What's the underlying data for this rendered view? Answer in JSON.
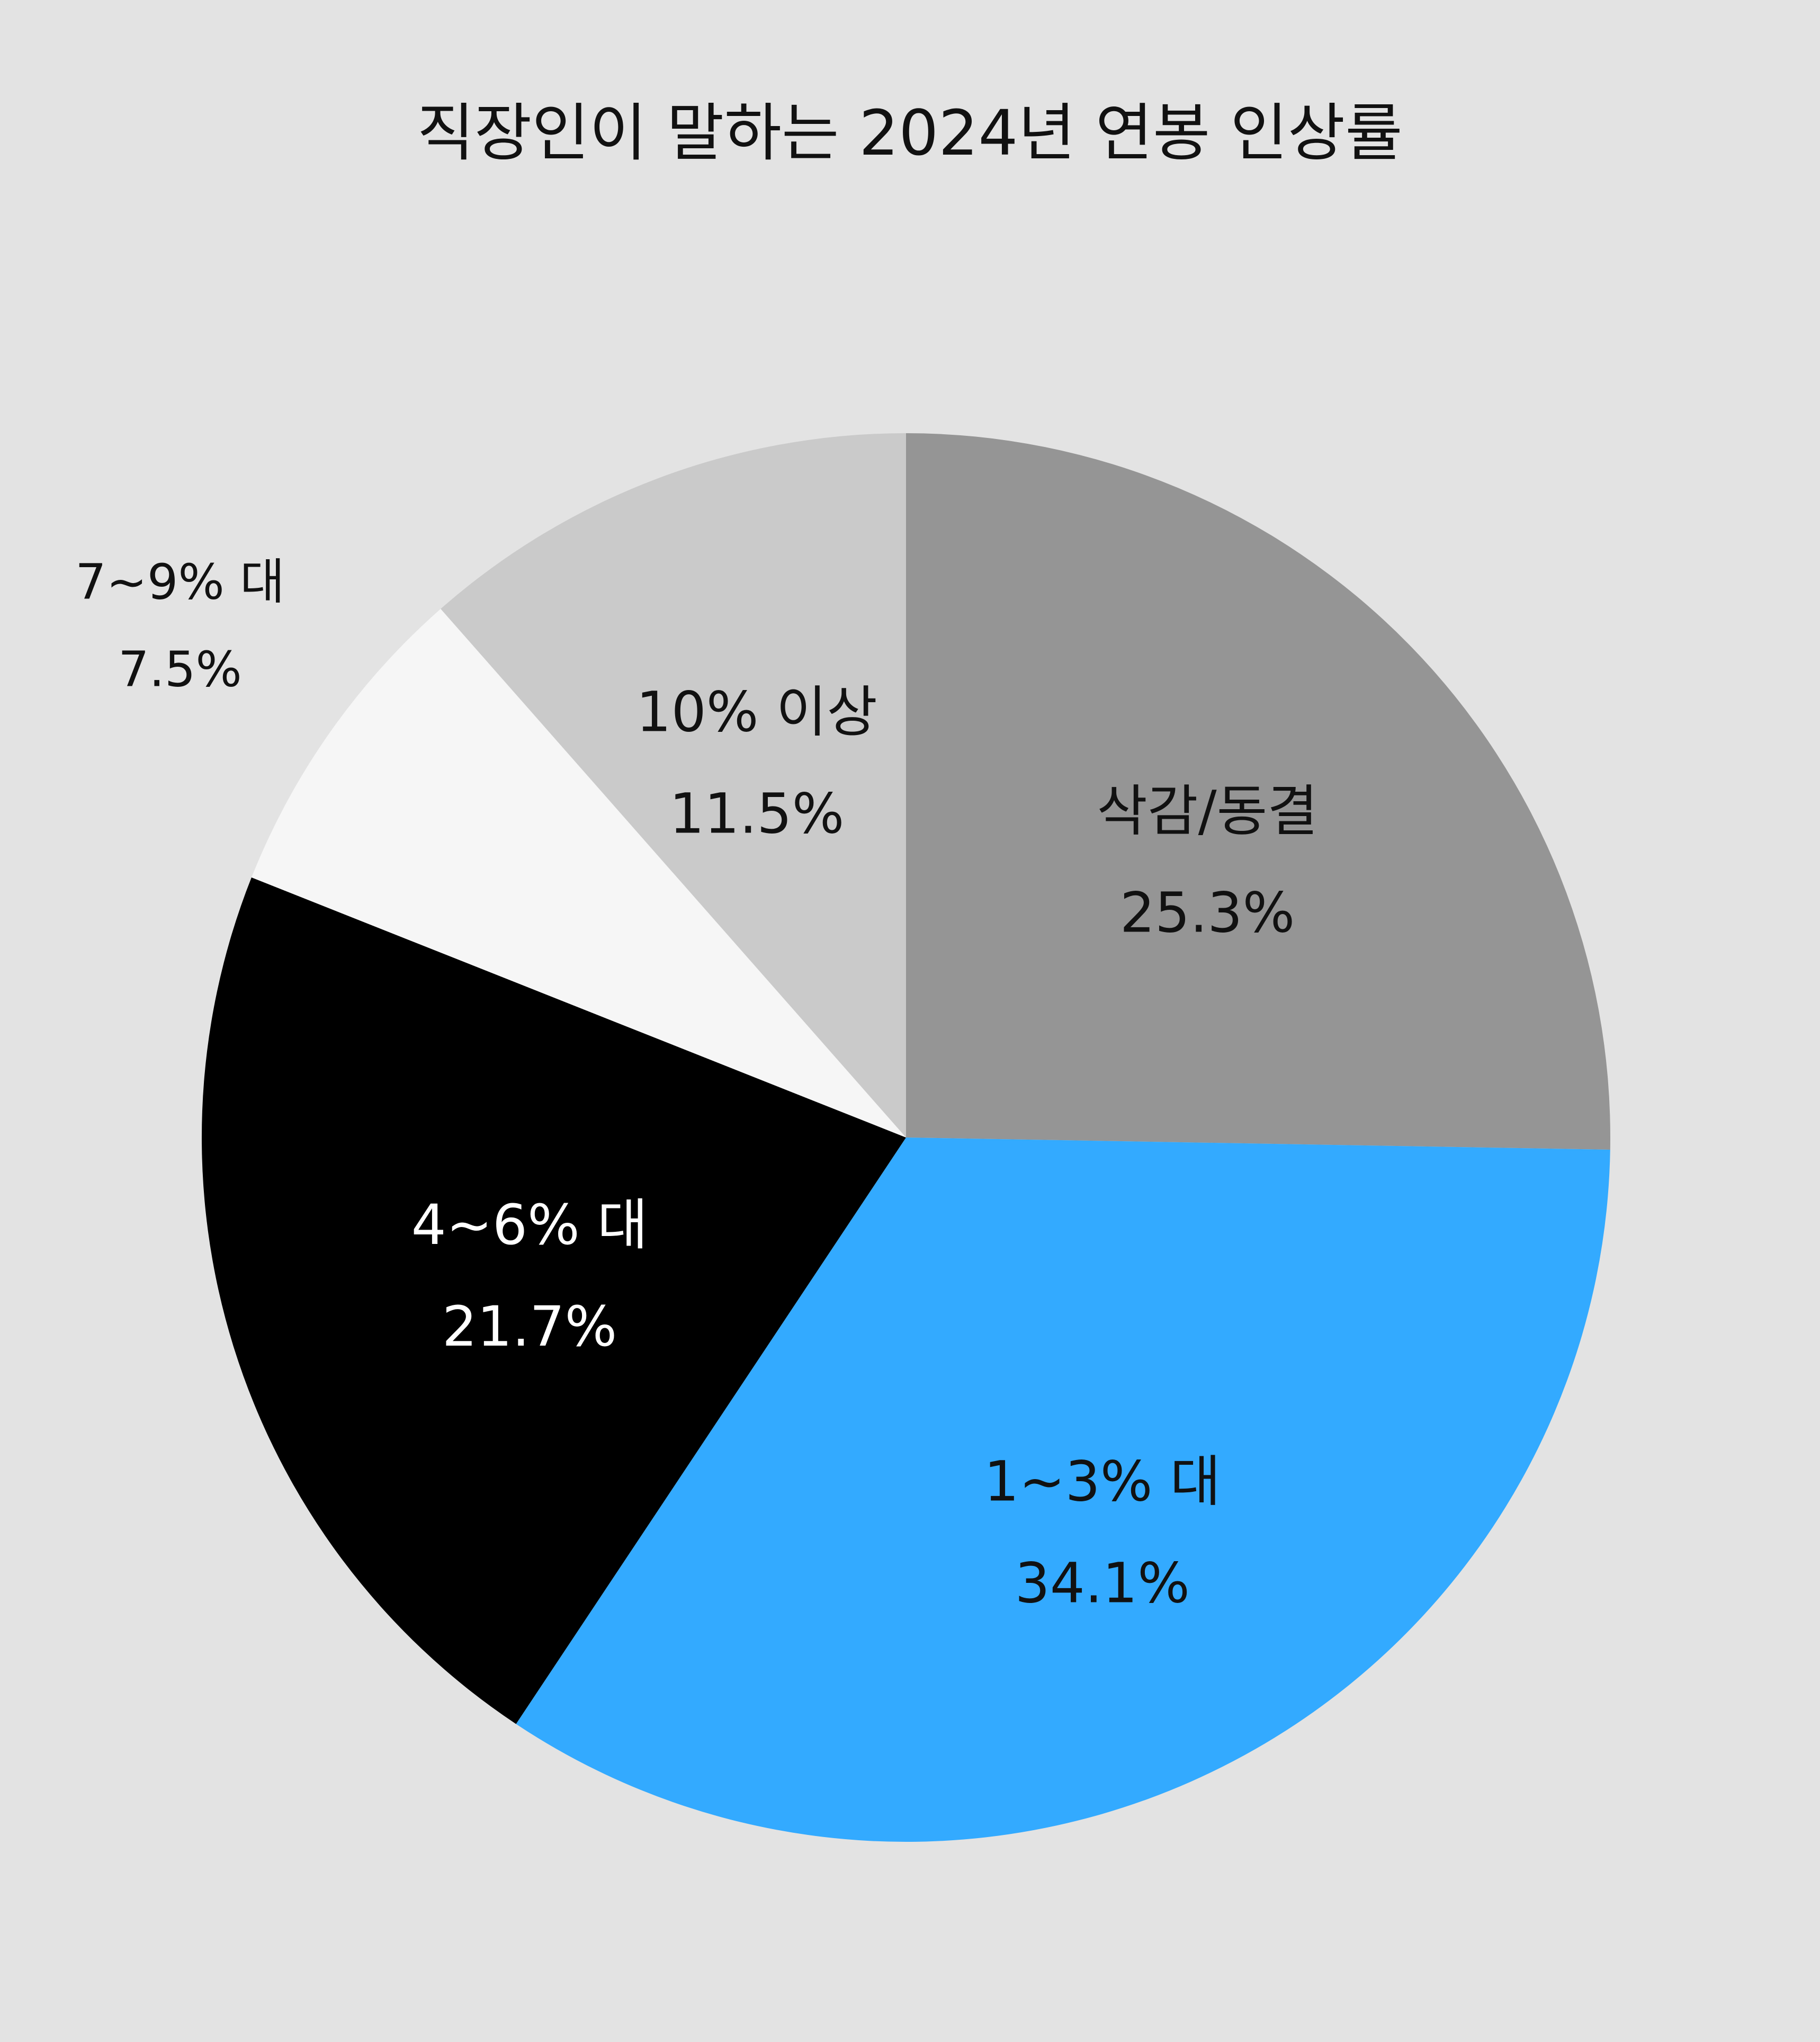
{
  "background": "#e3e3e3",
  "chart_data": {
    "type": "pie",
    "title": "직장인이 말하는 2024년 연봉 인상률",
    "start_angle_deg": 0,
    "direction": "clockwise",
    "slices": [
      {
        "category": "삭감/동결",
        "value": 25.3,
        "value_label": "25.3%",
        "color": "#959595",
        "label_color": "#111111",
        "label_position": "inside"
      },
      {
        "category": "1~3% 대",
        "value": 34.1,
        "value_label": "34.1%",
        "color": "#33aaff",
        "label_color": "#111111",
        "label_position": "inside"
      },
      {
        "category": "4~6% 대",
        "value": 21.7,
        "value_label": "21.7%",
        "color": "#000000",
        "label_color": "#ffffff",
        "label_position": "inside"
      },
      {
        "category": "7~9% 대",
        "value": 7.5,
        "value_label": "7.5%",
        "color": "#f6f6f6",
        "label_color": "#111111",
        "label_position": "outside"
      },
      {
        "category": "10% 이상",
        "value": 11.5,
        "value_label": "11.5%",
        "color": "#cacaca",
        "label_color": "#111111",
        "label_position": "inside"
      }
    ]
  }
}
